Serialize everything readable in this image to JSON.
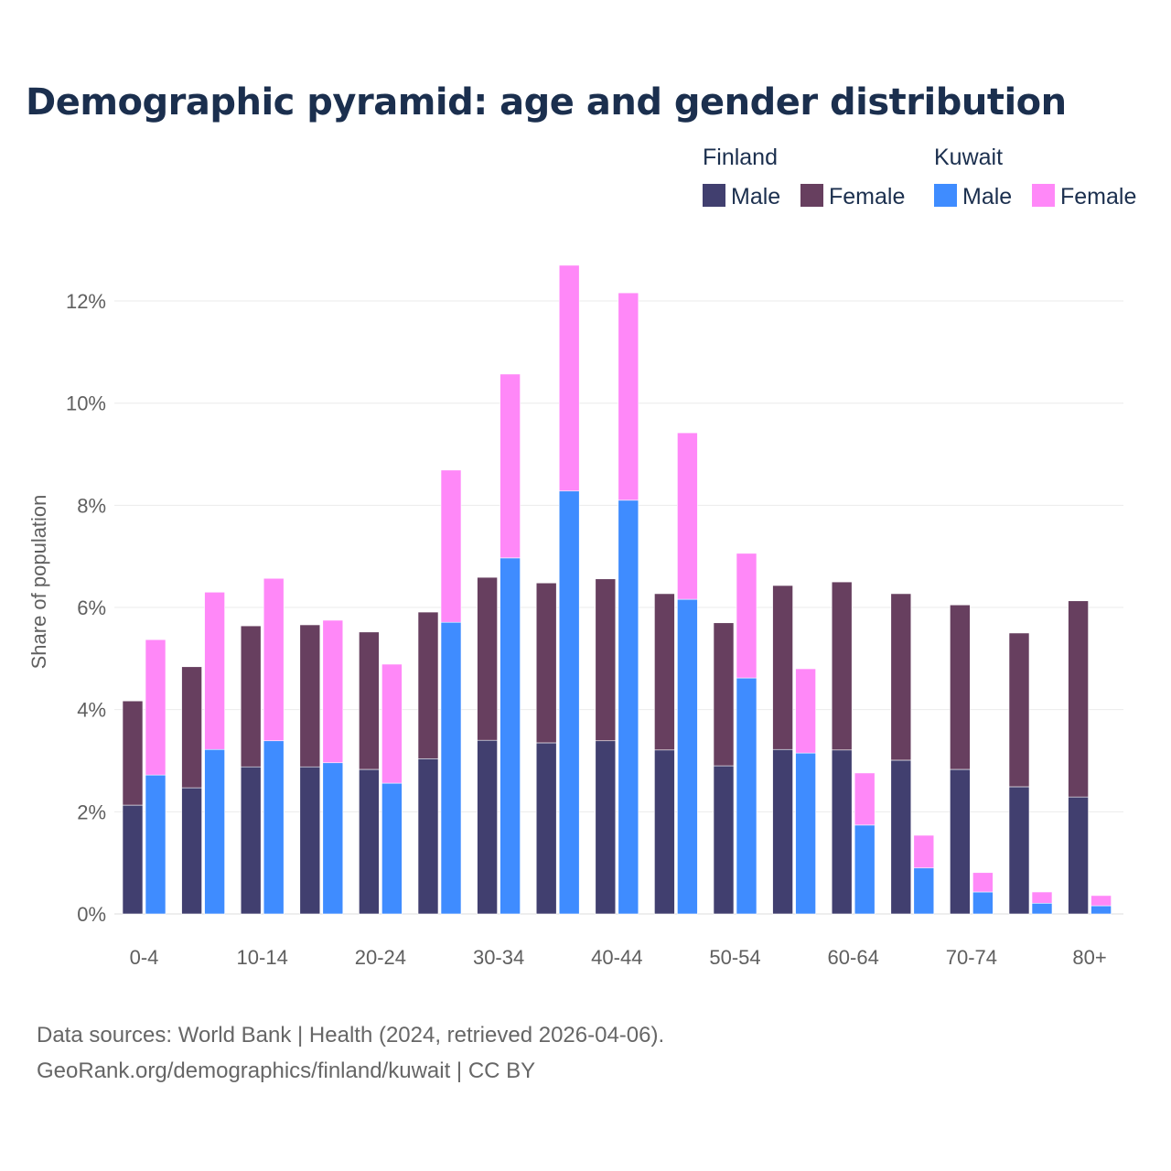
{
  "chart_data": {
    "type": "bar",
    "stacked": true,
    "title": "Demographic pyramid: age and gender distribution",
    "xlabel": "",
    "ylabel": "Share of population",
    "ylim": [
      0,
      13
    ],
    "yticks": [
      0,
      2,
      4,
      6,
      8,
      10,
      12
    ],
    "ytick_labels": [
      "0%",
      "2%",
      "4%",
      "6%",
      "8%",
      "10%",
      "12%"
    ],
    "grid": true,
    "legend_placement": "top-right",
    "categories": [
      "0-4",
      "5-9",
      "10-14",
      "15-19",
      "20-24",
      "25-29",
      "30-34",
      "35-39",
      "40-44",
      "45-49",
      "50-54",
      "55-59",
      "60-64",
      "65-69",
      "70-74",
      "75-79",
      "80+"
    ],
    "xtick_labels": [
      "0-4",
      "10-14",
      "20-24",
      "30-34",
      "40-44",
      "50-54",
      "60-64",
      "70-74",
      "80+"
    ],
    "groups": [
      {
        "name": "Finland",
        "series": [
          {
            "name": "Male",
            "color": "#413f6f",
            "values": [
              2.13,
              2.47,
              2.88,
              2.88,
              2.83,
              3.04,
              3.4,
              3.35,
              3.39,
              3.21,
              2.9,
              3.22,
              3.21,
              3.01,
              2.83,
              2.49,
              2.29
            ]
          },
          {
            "name": "Female",
            "color": "#673f5f",
            "values": [
              2.04,
              2.37,
              2.76,
              2.78,
              2.69,
              2.87,
              3.19,
              3.13,
              3.17,
              3.06,
              2.8,
              3.21,
              3.29,
              3.26,
              3.22,
              3.01,
              3.84
            ]
          }
        ]
      },
      {
        "name": "Kuwait",
        "series": [
          {
            "name": "Male",
            "color": "#3f8cff",
            "values": [
              2.72,
              3.22,
              3.39,
              2.96,
              2.56,
              5.71,
              6.97,
              8.28,
              8.1,
              6.16,
              4.62,
              3.15,
              1.74,
              0.9,
              0.43,
              0.21,
              0.16
            ]
          },
          {
            "name": "Female",
            "color": "#ff88f8",
            "values": [
              2.65,
              3.08,
              3.18,
              2.79,
              2.33,
              2.98,
              3.6,
              4.42,
              4.06,
              3.26,
              2.44,
              1.65,
              1.02,
              0.64,
              0.38,
              0.22,
              0.2
            ]
          }
        ]
      }
    ]
  },
  "source": {
    "line1": "Data sources: World Bank | Health (2024, retrieved 2026-04-06).",
    "line2": "GeoRank.org/demographics/finland/kuwait | CC BY"
  }
}
